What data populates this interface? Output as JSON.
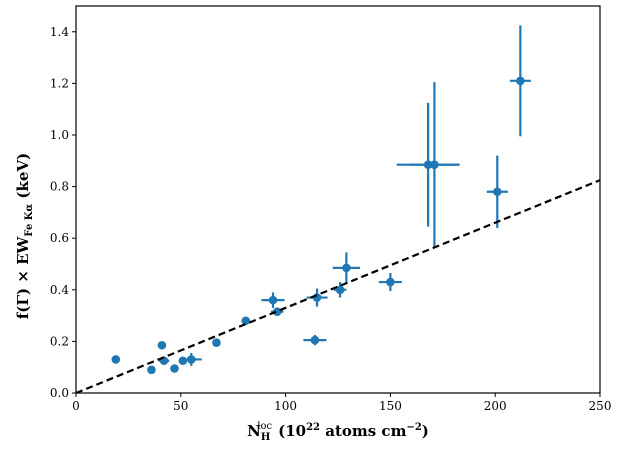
{
  "chart_data": {
    "type": "scatter",
    "xlabel": {
      "base": "N",
      "sub": "H",
      "sup": "loc",
      "units_pre": "(10",
      "units_exp": "22",
      "units_mid": " atoms cm",
      "units_exp2": "−2",
      "units_post": ")"
    },
    "ylabel": {
      "pre": "f(Γ) × EW",
      "sub": "Fe Kα",
      "post": " (keV)"
    },
    "xlim": [
      0,
      250
    ],
    "ylim": [
      0.0,
      1.5
    ],
    "xticks": [
      0,
      50,
      100,
      150,
      200,
      250
    ],
    "yticks": [
      0.0,
      0.2,
      0.4,
      0.6,
      0.8,
      1.0,
      1.2,
      1.4
    ],
    "ytick_labels": [
      "0.0",
      "0.2",
      "0.4",
      "0.6",
      "0.8",
      "1.0",
      "1.2",
      "1.4"
    ],
    "grid": false,
    "colors": {
      "points": "#1f77b4",
      "fit_line": "#000000"
    },
    "fit_line": {
      "style": "dashed",
      "x": [
        0,
        250
      ],
      "y": [
        0.0,
        0.825
      ]
    },
    "points": [
      {
        "x": 19,
        "y": 0.13,
        "xerr": 1.5,
        "yerr": 0.01
      },
      {
        "x": 36,
        "y": 0.09,
        "xerr": 1.0,
        "yerr": 0.01
      },
      {
        "x": 41,
        "y": 0.185,
        "xerr": 1.0,
        "yerr": 0.01
      },
      {
        "x": 42,
        "y": 0.125,
        "xerr": 2.5,
        "yerr": 0.01
      },
      {
        "x": 47,
        "y": 0.095,
        "xerr": 1.0,
        "yerr": 0.01
      },
      {
        "x": 51,
        "y": 0.125,
        "xerr": 1.0,
        "yerr": 0.01
      },
      {
        "x": 55,
        "y": 0.13,
        "xerr": 5.0,
        "yerr": 0.025
      },
      {
        "x": 67,
        "y": 0.195,
        "xerr": 1.0,
        "yerr": 0.01
      },
      {
        "x": 81,
        "y": 0.28,
        "xerr": 1.0,
        "yerr": 0.01
      },
      {
        "x": 94,
        "y": 0.36,
        "xerr": 5.5,
        "yerr": 0.03
      },
      {
        "x": 96,
        "y": 0.315,
        "xerr": 3.0,
        "yerr": 0.01
      },
      {
        "x": 114,
        "y": 0.205,
        "xerr": 5.5,
        "yerr": 0.02
      },
      {
        "x": 115,
        "y": 0.37,
        "xerr": 5.0,
        "yerr": 0.035
      },
      {
        "x": 126,
        "y": 0.4,
        "xerr": 3.0,
        "yerr": 0.03
      },
      {
        "x": 129,
        "y": 0.485,
        "xerr": 6.5,
        "yerr": 0.06
      },
      {
        "x": 150,
        "y": 0.43,
        "xerr": 5.5,
        "yerr": 0.035
      },
      {
        "x": 168,
        "y": 0.885,
        "xerr": 15.0,
        "yerr": 0.24
      },
      {
        "x": 171,
        "y": 0.885,
        "xerr": 12.0,
        "yerr": 0.32
      },
      {
        "x": 201,
        "y": 0.78,
        "xerr": 5.0,
        "yerr": 0.14
      },
      {
        "x": 212,
        "y": 1.21,
        "xerr": 5.0,
        "yerr": 0.215
      }
    ]
  }
}
